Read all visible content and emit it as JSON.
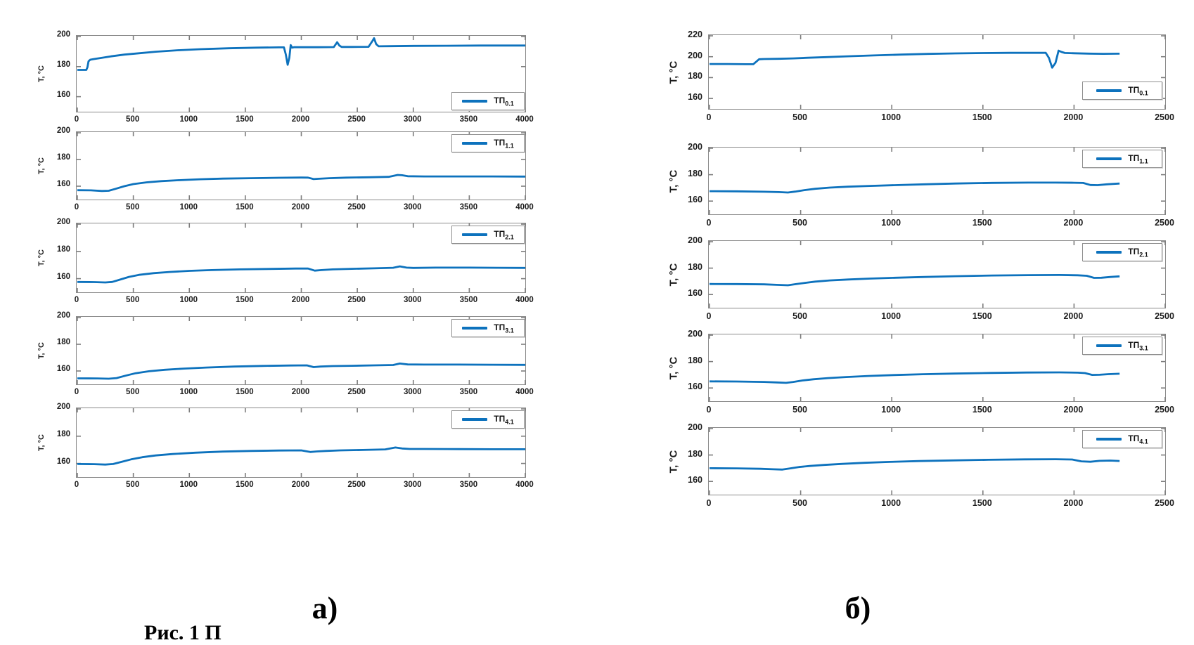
{
  "figure": {
    "panel_a_label": "а)",
    "panel_b_label": "б)",
    "caption_fragment": "Рис. 1 П",
    "colors": {
      "line": "#0d72bd",
      "axis": "#8a8a8a",
      "tick": "#7d7d7d",
      "tick_label": "#1c1c1c"
    }
  },
  "chart_data": [
    {
      "id": "a0",
      "panel": "a",
      "type": "line",
      "row": 0,
      "legend_label": "ТП",
      "legend_sub": "0.1",
      "legend_pos": "bottom-right",
      "ylabel": "T, °C",
      "xlim": [
        0,
        4000
      ],
      "ylim": [
        150,
        200
      ],
      "xticks": [
        0,
        500,
        1000,
        1500,
        2000,
        2500,
        3000,
        3500,
        4000
      ],
      "yticks": [
        160,
        180,
        200
      ],
      "x": [
        0,
        80,
        90,
        100,
        115,
        140,
        200,
        300,
        420,
        550,
        700,
        900,
        1100,
        1350,
        1600,
        1800,
        1845,
        1862,
        1878,
        1893,
        1905,
        1918,
        1935,
        2000,
        2150,
        2290,
        2320,
        2340,
        2360,
        2450,
        2600,
        2635,
        2650,
        2668,
        2690,
        2800,
        3000,
        3300,
        3600,
        4000
      ],
      "y": [
        177.8,
        177.8,
        179.5,
        183.5,
        184.6,
        184.9,
        185.6,
        186.8,
        188.0,
        188.9,
        189.9,
        190.9,
        191.6,
        192.2,
        192.6,
        192.8,
        192.8,
        188.0,
        181.2,
        186.0,
        194.3,
        192.6,
        192.9,
        192.9,
        192.9,
        193.0,
        196.2,
        194.0,
        193.1,
        193.1,
        193.2,
        197.0,
        198.9,
        195.0,
        193.5,
        193.6,
        193.8,
        193.9,
        194.0,
        194.0
      ]
    },
    {
      "id": "a1",
      "panel": "a",
      "type": "line",
      "row": 1,
      "legend_label": "ТП",
      "legend_sub": "1.1",
      "legend_pos": "top-right",
      "ylabel": "T, °C",
      "xlim": [
        0,
        4000
      ],
      "ylim": [
        150,
        200
      ],
      "xticks": [
        0,
        500,
        1000,
        1500,
        2000,
        2500,
        3000,
        3500,
        4000
      ],
      "yticks": [
        160,
        180,
        200
      ],
      "x": [
        0,
        120,
        220,
        280,
        340,
        420,
        500,
        620,
        750,
        900,
        1100,
        1300,
        1550,
        1800,
        2000,
        2060,
        2110,
        2160,
        2250,
        2400,
        2600,
        2780,
        2860,
        2900,
        2950,
        3100,
        3400,
        3700,
        4000
      ],
      "y": [
        157.0,
        156.9,
        156.4,
        156.6,
        158.0,
        160.0,
        161.6,
        162.9,
        163.8,
        164.5,
        165.2,
        165.7,
        166.0,
        166.3,
        166.5,
        166.4,
        165.3,
        165.6,
        166.0,
        166.4,
        166.7,
        167.0,
        168.4,
        168.2,
        167.5,
        167.3,
        167.3,
        167.3,
        167.2
      ]
    },
    {
      "id": "a2",
      "panel": "a",
      "type": "line",
      "row": 2,
      "legend_label": "ТП",
      "legend_sub": "2.1",
      "legend_pos": "top-right",
      "ylabel": "T, °C",
      "xlim": [
        0,
        4000
      ],
      "ylim": [
        150,
        200
      ],
      "xticks": [
        0,
        500,
        1000,
        1500,
        2000,
        2500,
        3000,
        3500,
        4000
      ],
      "yticks": [
        160,
        180,
        200
      ],
      "x": [
        0,
        150,
        250,
        310,
        380,
        460,
        550,
        680,
        820,
        1000,
        1200,
        1450,
        1700,
        1950,
        2060,
        2120,
        2180,
        2280,
        2450,
        2650,
        2820,
        2880,
        2940,
        3000,
        3200,
        3500,
        3750,
        4000
      ],
      "y": [
        157.6,
        157.5,
        157.2,
        157.6,
        159.3,
        161.3,
        162.8,
        164.0,
        164.9,
        165.7,
        166.3,
        166.8,
        167.1,
        167.4,
        167.4,
        165.9,
        166.3,
        166.8,
        167.2,
        167.6,
        168.0,
        169.0,
        168.1,
        167.9,
        168.1,
        168.1,
        168.0,
        167.9
      ]
    },
    {
      "id": "a3",
      "panel": "a",
      "type": "line",
      "row": 3,
      "legend_label": "ТП",
      "legend_sub": "3.1",
      "legend_pos": "top-right",
      "ylabel": "T, °C",
      "xlim": [
        0,
        4000
      ],
      "ylim": [
        150,
        200
      ],
      "xticks": [
        0,
        500,
        1000,
        1500,
        2000,
        2500,
        3000,
        3500,
        4000
      ],
      "yticks": [
        160,
        180,
        200
      ],
      "x": [
        0,
        180,
        280,
        350,
        430,
        520,
        640,
        780,
        950,
        1150,
        1400,
        1650,
        1900,
        2050,
        2110,
        2170,
        2280,
        2450,
        2650,
        2820,
        2880,
        2950,
        3100,
        3400,
        3700,
        4000
      ],
      "y": [
        154.5,
        154.4,
        154.2,
        154.7,
        156.5,
        158.3,
        159.8,
        160.9,
        161.8,
        162.6,
        163.3,
        163.8,
        164.1,
        164.2,
        162.9,
        163.3,
        163.7,
        163.9,
        164.2,
        164.5,
        165.6,
        164.9,
        164.8,
        164.8,
        164.7,
        164.6
      ]
    },
    {
      "id": "a4",
      "panel": "a",
      "type": "line",
      "row": 4,
      "legend_label": "ТП",
      "legend_sub": "4.1",
      "legend_pos": "top-right",
      "ylabel": "T, °C",
      "xlim": [
        0,
        4000
      ],
      "ylim": [
        150,
        200
      ],
      "xticks": [
        0,
        500,
        1000,
        1500,
        2000,
        2500,
        3000,
        3500,
        4000
      ],
      "yticks": [
        160,
        180,
        200
      ],
      "x": [
        0,
        150,
        250,
        320,
        400,
        480,
        580,
        700,
        850,
        1050,
        1300,
        1550,
        1800,
        2000,
        2080,
        2140,
        2220,
        2350,
        2550,
        2750,
        2840,
        2900,
        2970,
        3100,
        3400,
        3700,
        4000
      ],
      "y": [
        159.6,
        159.5,
        159.2,
        159.6,
        161.3,
        163.0,
        164.6,
        165.9,
        166.9,
        167.9,
        168.7,
        169.2,
        169.5,
        169.6,
        168.4,
        168.8,
        169.2,
        169.6,
        169.9,
        170.3,
        171.7,
        171.0,
        170.6,
        170.6,
        170.5,
        170.4,
        170.4
      ]
    },
    {
      "id": "b0",
      "panel": "b",
      "type": "line",
      "row": 0,
      "legend_label": "ТП",
      "legend_sub": "0.1",
      "legend_pos": "right-low",
      "ylabel": "T, °C",
      "xlim": [
        0,
        2500
      ],
      "ylim": [
        150,
        220
      ],
      "xticks": [
        0,
        500,
        1000,
        1500,
        2000,
        2500
      ],
      "yticks": [
        160,
        180,
        200,
        220
      ],
      "x": [
        0,
        100,
        200,
        240,
        258,
        272,
        300,
        380,
        460,
        540,
        640,
        760,
        900,
        1050,
        1200,
        1350,
        1500,
        1650,
        1780,
        1845,
        1862,
        1880,
        1898,
        1915,
        1932,
        1950,
        2000,
        2080,
        2160,
        2250
      ],
      "y": [
        193.0,
        193.0,
        192.8,
        192.8,
        195.5,
        197.6,
        197.8,
        198.0,
        198.4,
        199.0,
        199.6,
        200.4,
        201.2,
        202.0,
        202.7,
        203.2,
        203.5,
        203.7,
        203.7,
        203.7,
        199.0,
        189.5,
        194.0,
        205.8,
        204.5,
        203.6,
        203.3,
        203.0,
        202.8,
        202.9
      ]
    },
    {
      "id": "b1",
      "panel": "b",
      "type": "line",
      "row": 1,
      "legend_label": "ТП",
      "legend_sub": "1.1",
      "legend_pos": "top-right",
      "ylabel": "T, °C",
      "xlim": [
        0,
        2500
      ],
      "ylim": [
        150,
        200
      ],
      "xticks": [
        0,
        500,
        1000,
        1500,
        2000,
        2500
      ],
      "yticks": [
        160,
        180,
        200
      ],
      "x": [
        0,
        150,
        300,
        380,
        430,
        470,
        520,
        580,
        660,
        760,
        880,
        1020,
        1180,
        1350,
        1550,
        1750,
        1900,
        2000,
        2050,
        2090,
        2130,
        2180,
        2250
      ],
      "y": [
        167.5,
        167.4,
        167.1,
        166.8,
        166.5,
        167.2,
        168.3,
        169.3,
        170.2,
        170.9,
        171.5,
        172.1,
        172.7,
        173.3,
        173.8,
        174.0,
        174.0,
        173.9,
        173.7,
        172.2,
        172.1,
        172.7,
        173.3
      ]
    },
    {
      "id": "b2",
      "panel": "b",
      "type": "line",
      "row": 2,
      "legend_label": "ТП",
      "legend_sub": "2.1",
      "legend_pos": "top-right",
      "ylabel": "T, °C",
      "xlim": [
        0,
        2500
      ],
      "ylim": [
        150,
        200
      ],
      "xticks": [
        0,
        500,
        1000,
        1500,
        2000,
        2500
      ],
      "yticks": [
        160,
        180,
        200
      ],
      "x": [
        0,
        150,
        300,
        380,
        430,
        470,
        520,
        580,
        660,
        760,
        880,
        1020,
        1180,
        1350,
        1550,
        1750,
        1920,
        2020,
        2070,
        2110,
        2150,
        2200,
        2250
      ],
      "y": [
        168.0,
        167.9,
        167.7,
        167.3,
        167.0,
        167.8,
        168.8,
        169.8,
        170.7,
        171.4,
        172.1,
        172.7,
        173.3,
        173.9,
        174.4,
        174.7,
        174.8,
        174.6,
        174.2,
        172.6,
        172.7,
        173.3,
        173.8
      ]
    },
    {
      "id": "b3",
      "panel": "b",
      "type": "line",
      "row": 3,
      "legend_label": "ТП",
      "legend_sub": "3.1",
      "legend_pos": "top-right",
      "ylabel": "T, °C",
      "xlim": [
        0,
        2500
      ],
      "ylim": [
        150,
        200
      ],
      "xticks": [
        0,
        500,
        1000,
        1500,
        2000,
        2500
      ],
      "yticks": [
        160,
        180,
        200
      ],
      "x": [
        0,
        150,
        300,
        370,
        420,
        460,
        510,
        570,
        650,
        750,
        870,
        1010,
        1170,
        1340,
        1540,
        1740,
        1920,
        2020,
        2060,
        2100,
        2140,
        2190,
        2250
      ],
      "y": [
        165.0,
        164.9,
        164.6,
        164.2,
        163.9,
        164.6,
        165.7,
        166.6,
        167.5,
        168.3,
        169.1,
        169.8,
        170.4,
        170.9,
        171.4,
        171.7,
        171.8,
        171.6,
        171.3,
        169.9,
        170.0,
        170.5,
        170.8
      ]
    },
    {
      "id": "b4",
      "panel": "b",
      "type": "line",
      "row": 4,
      "legend_label": "ТП",
      "legend_sub": "4.1",
      "legend_pos": "top-right",
      "ylabel": "T, °C",
      "xlim": [
        0,
        2500
      ],
      "ylim": [
        150,
        200
      ],
      "xticks": [
        0,
        500,
        1000,
        1500,
        2000,
        2500
      ],
      "yticks": [
        160,
        180,
        200
      ],
      "x": [
        0,
        150,
        280,
        350,
        400,
        440,
        490,
        550,
        630,
        730,
        850,
        990,
        1150,
        1330,
        1530,
        1730,
        1900,
        1990,
        2040,
        2090,
        2140,
        2200,
        2250
      ],
      "y": [
        170.0,
        169.9,
        169.6,
        169.2,
        169.0,
        169.8,
        170.9,
        171.7,
        172.5,
        173.3,
        174.1,
        174.8,
        175.4,
        175.9,
        176.4,
        176.7,
        176.8,
        176.6,
        175.2,
        174.9,
        175.6,
        175.8,
        175.5
      ]
    }
  ]
}
